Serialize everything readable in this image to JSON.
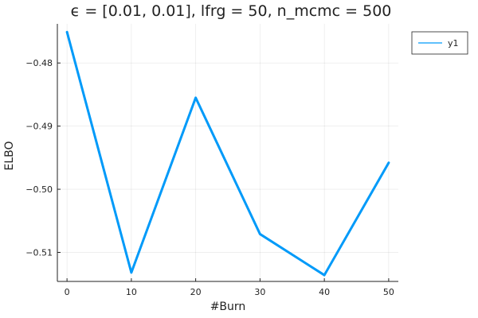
{
  "chart_data": {
    "type": "line",
    "title": "ϵ = [0.01, 0.01], lfrg = 50, n_mcmc = 500",
    "xlabel": "#Burn",
    "ylabel": "ELBO",
    "x": [
      0,
      10,
      20,
      30,
      40,
      50
    ],
    "series": [
      {
        "name": "y1",
        "values": [
          -0.4751,
          -0.5132,
          -0.4855,
          -0.5071,
          -0.5136,
          -0.4958
        ],
        "color": "#009af9"
      }
    ],
    "xlim": [
      -1.5,
      51.5
    ],
    "ylim": [
      -0.5146,
      -0.4738
    ],
    "xticks": [
      0,
      10,
      20,
      30,
      40,
      50
    ],
    "xtick_labels": [
      "0",
      "10",
      "20",
      "30",
      "40",
      "50"
    ],
    "yticks": [
      -0.51,
      -0.5,
      -0.49,
      -0.48
    ],
    "ytick_labels": [
      "-0.51",
      "-0.50",
      "-0.49",
      "-0.48"
    ],
    "grid": true,
    "legend": "top-right"
  }
}
